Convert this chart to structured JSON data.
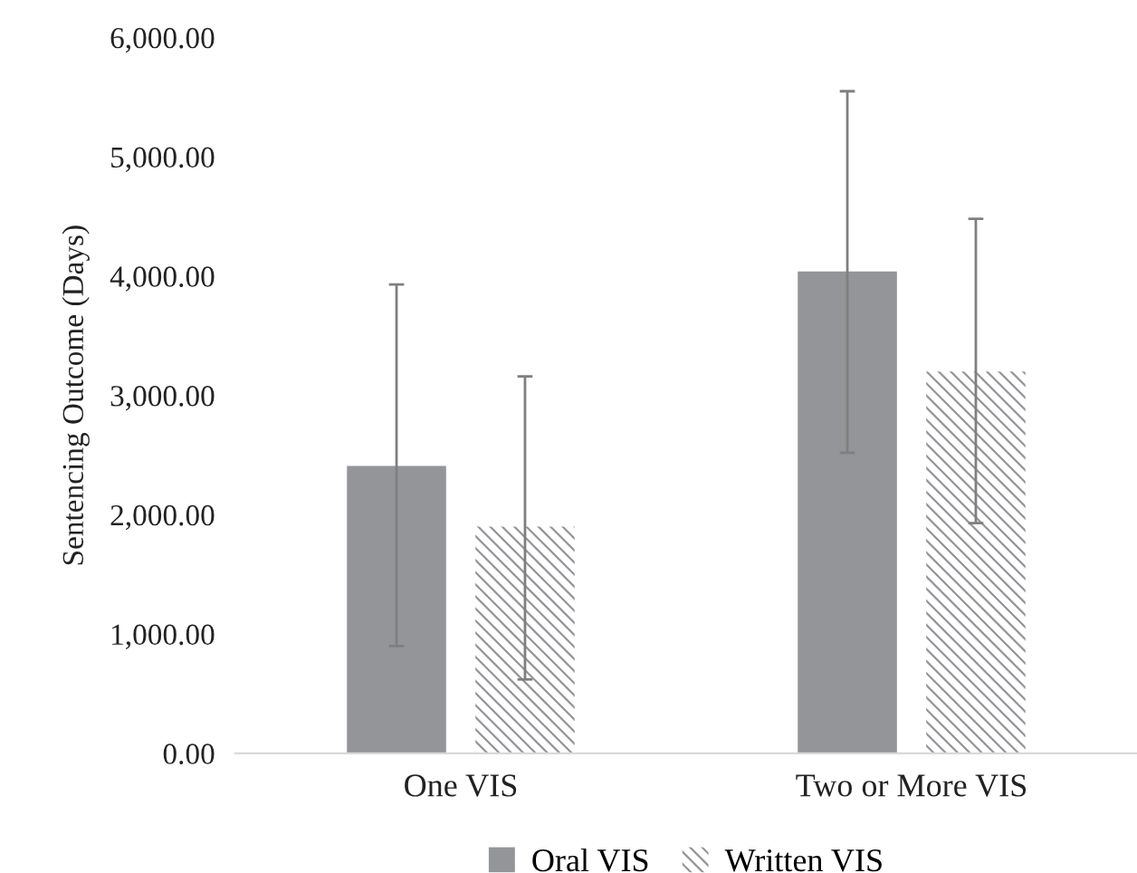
{
  "chart_data": {
    "type": "bar",
    "ylabel": "Sentencing Outcome (Days)",
    "categories": [
      "One VIS",
      "Two or More VIS"
    ],
    "series": [
      {
        "name": "Oral VIS",
        "color": "#939598",
        "values": [
          2410,
          4040
        ],
        "errors": [
          [
            900,
            3930
          ],
          [
            2520,
            5550
          ]
        ]
      },
      {
        "name": "Written VIS",
        "color": "#939598",
        "values": [
          1900,
          3200
        ],
        "errors": [
          [
            620,
            3160
          ],
          [
            1930,
            4480
          ]
        ]
      }
    ],
    "ylim": [
      0,
      6000
    ],
    "yticks": [
      {
        "value": 0,
        "label": "0.00"
      },
      {
        "value": 1000,
        "label": "1,000.00"
      },
      {
        "value": 2000,
        "label": "2,000.00"
      },
      {
        "value": 3000,
        "label": "3,000.00"
      },
      {
        "value": 4000,
        "label": "4,000.00"
      },
      {
        "value": 5000,
        "label": "5,000.00"
      },
      {
        "value": 6000,
        "label": "6,000.00"
      }
    ],
    "grid": false,
    "legend": "bottom"
  }
}
